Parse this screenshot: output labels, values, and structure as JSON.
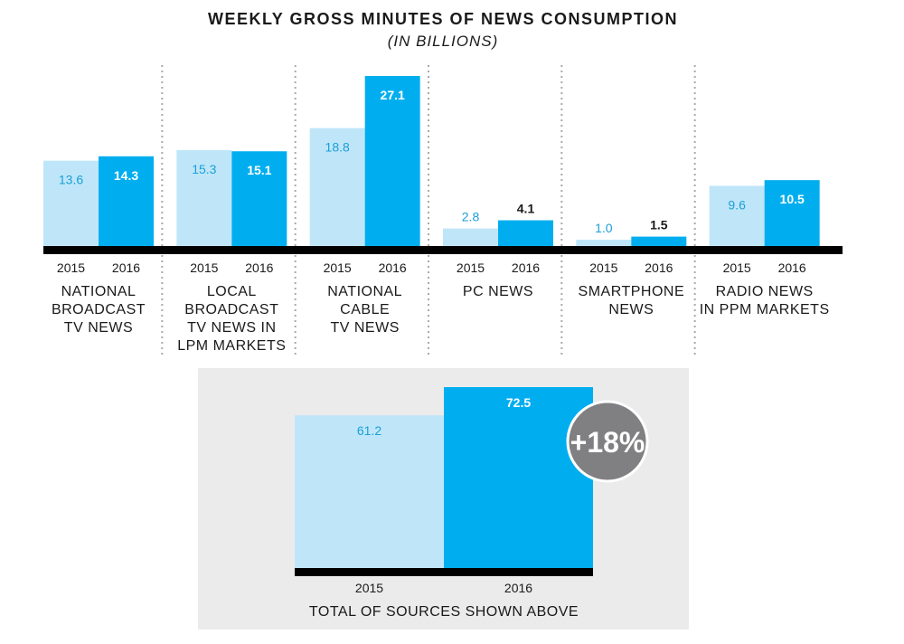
{
  "chart_data": [
    {
      "type": "bar",
      "title": "WEEKLY GROSS MINUTES OF NEWS CONSUMPTION",
      "subtitle": "(IN BILLIONS)",
      "series_names": [
        "2015",
        "2016"
      ],
      "groups": [
        {
          "label": [
            "NATIONAL",
            "BROADCAST",
            "TV NEWS"
          ],
          "values": [
            13.6,
            14.3
          ],
          "value_labels": [
            "13.6",
            "14.3"
          ]
        },
        {
          "label": [
            "LOCAL",
            "BROADCAST",
            "TV NEWS IN",
            "LPM MARKETS"
          ],
          "values": [
            15.3,
            15.1
          ],
          "value_labels": [
            "15.3",
            "15.1"
          ]
        },
        {
          "label": [
            "NATIONAL",
            "CABLE",
            "TV NEWS"
          ],
          "values": [
            18.8,
            27.1
          ],
          "value_labels": [
            "18.8",
            "27.1"
          ]
        },
        {
          "label": [
            "PC NEWS"
          ],
          "values": [
            2.8,
            4.1
          ],
          "value_labels": [
            "2.8",
            "4.1"
          ]
        },
        {
          "label": [
            "SMARTPHONE",
            "NEWS"
          ],
          "values": [
            1.0,
            1.5
          ],
          "value_labels": [
            "1.0",
            "1.5"
          ]
        },
        {
          "label": [
            "RADIO NEWS",
            "IN PPM MARKETS"
          ],
          "values": [
            9.6,
            10.5
          ],
          "value_labels": [
            "9.6",
            "10.5"
          ]
        }
      ],
      "ylim": [
        0,
        27.1
      ]
    },
    {
      "type": "bar",
      "title": "TOTAL OF SOURCES SHOWN ABOVE",
      "categories": [
        "2015",
        "2016"
      ],
      "values": [
        61.2,
        72.5
      ],
      "value_labels": [
        "61.2",
        "72.5"
      ],
      "ylim": [
        0,
        72.5
      ],
      "badge": "+18%"
    }
  ],
  "colors": {
    "bar_2015": "#bfe6f8",
    "bar_2016": "#00aeef",
    "label_2015": "#1a9fd8",
    "label_2016": "#ffffff",
    "baseline": "#000000",
    "text": "#1a1a1a",
    "divider": "#aaaaaa",
    "panel": "#ebebeb",
    "badge_fill": "#808082",
    "badge_stroke": "#ffffff"
  }
}
